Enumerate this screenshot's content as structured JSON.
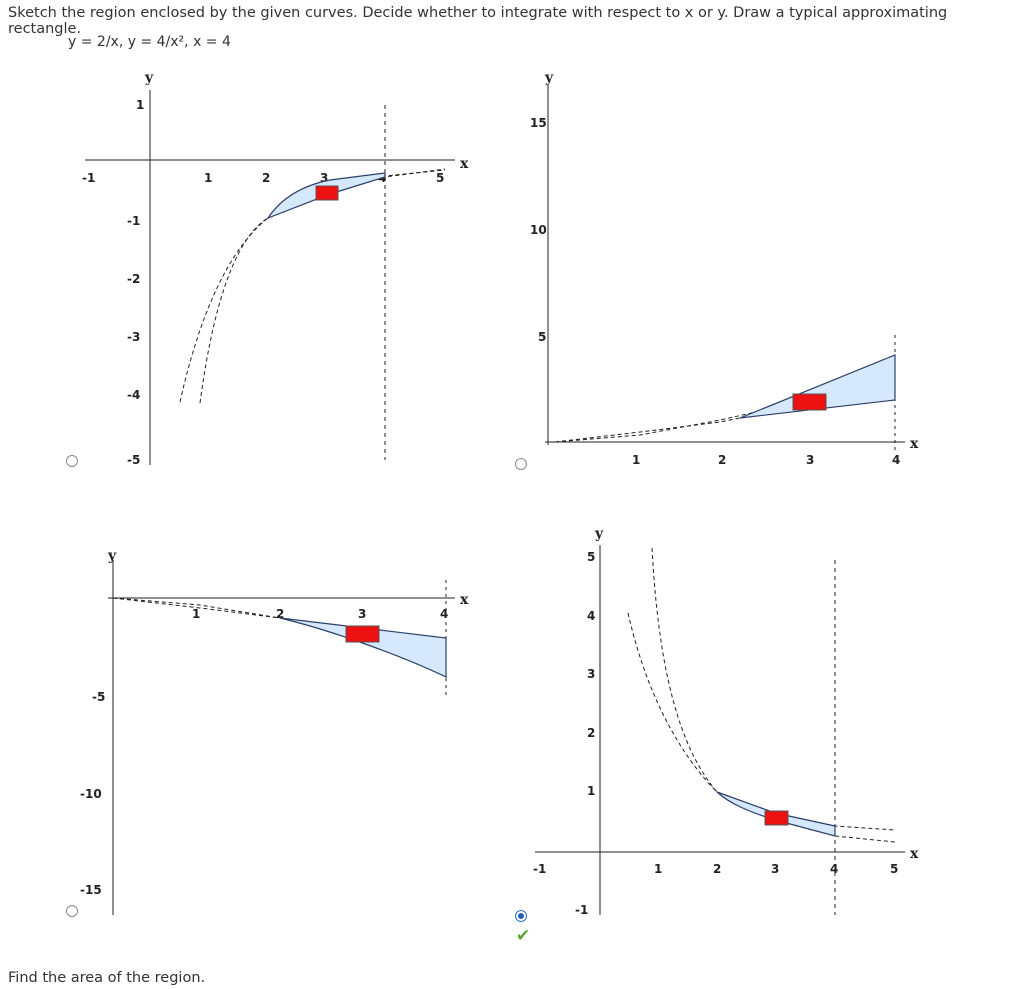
{
  "question": {
    "prompt": "Sketch the region enclosed by the given curves. Decide whether to integrate with respect to x or y. Draw a typical approximating rectangle.",
    "equations": "y = 2/x,  y = 4/x²,  x = 4",
    "followup": "Find the area of the region."
  },
  "colors": {
    "region_fill": "#d6e8fb",
    "rectangle": "#ee1111",
    "accent": "#1f5fbf",
    "correct": "#58a831"
  },
  "options": [
    {
      "id": "option-a",
      "selected": false,
      "correct_mark": ""
    },
    {
      "id": "option-b",
      "selected": false,
      "correct_mark": ""
    },
    {
      "id": "option-c",
      "selected": false,
      "correct_mark": ""
    },
    {
      "id": "option-d",
      "selected": true,
      "correct_mark": "✔"
    }
  ],
  "chart_data": [
    {
      "type": "area",
      "x_label": "x",
      "y_label": "y",
      "xlim": [
        -1,
        5.2
      ],
      "ylim": [
        -5.5,
        1
      ],
      "x_ticks": [
        "-1",
        "1",
        "2",
        "3",
        "4",
        "5"
      ],
      "y_ticks": [
        "1",
        "-1",
        "-2",
        "-3",
        "-4",
        "-5"
      ],
      "series": [
        {
          "formula": "-2/x"
        },
        {
          "formula": "-4/x^2"
        }
      ],
      "region_x": [
        2,
        4
      ],
      "vertical_line": 4,
      "rectangle_x": [
        2.85,
        3.25
      ]
    },
    {
      "type": "area",
      "x_label": "x",
      "y_label": "y",
      "xlim": [
        0,
        4.1
      ],
      "ylim": [
        -0.5,
        16
      ],
      "x_ticks": [
        "1",
        "2",
        "3",
        "4"
      ],
      "y_ticks": [
        "15",
        "10",
        "5"
      ],
      "series": [
        {
          "formula": "x^2/4"
        },
        {
          "formula": "x/2"
        }
      ],
      "region_x": [
        2,
        4
      ],
      "vertical_line": 4,
      "rectangle_x": [
        2.85,
        3.25
      ]
    },
    {
      "type": "area",
      "x_label": "x",
      "y_label": "y",
      "xlim": [
        -0.1,
        4.2
      ],
      "ylim": [
        -18.5,
        0.3
      ],
      "x_ticks": [
        "1",
        "2",
        "3",
        "4"
      ],
      "y_ticks": [
        "-5",
        "-10",
        "-15"
      ],
      "series": [
        {
          "formula": "-x/2"
        },
        {
          "formula": "-x^2/4"
        }
      ],
      "region_x": [
        2,
        4
      ],
      "vertical_line": 4,
      "rectangle_x": [
        2.85,
        3.25
      ]
    },
    {
      "type": "area",
      "x_label": "x",
      "y_label": "y",
      "xlim": [
        -1,
        5.2
      ],
      "ylim": [
        -1.2,
        5.3
      ],
      "x_ticks": [
        "-1",
        "1",
        "2",
        "3",
        "4",
        "5"
      ],
      "y_ticks": [
        "5",
        "4",
        "3",
        "2",
        "1",
        "-1"
      ],
      "series": [
        {
          "formula": "2/x"
        },
        {
          "formula": "4/x^2"
        }
      ],
      "region_x": [
        2,
        4
      ],
      "vertical_line": 4,
      "rectangle_x": [
        2.85,
        3.25
      ]
    }
  ]
}
